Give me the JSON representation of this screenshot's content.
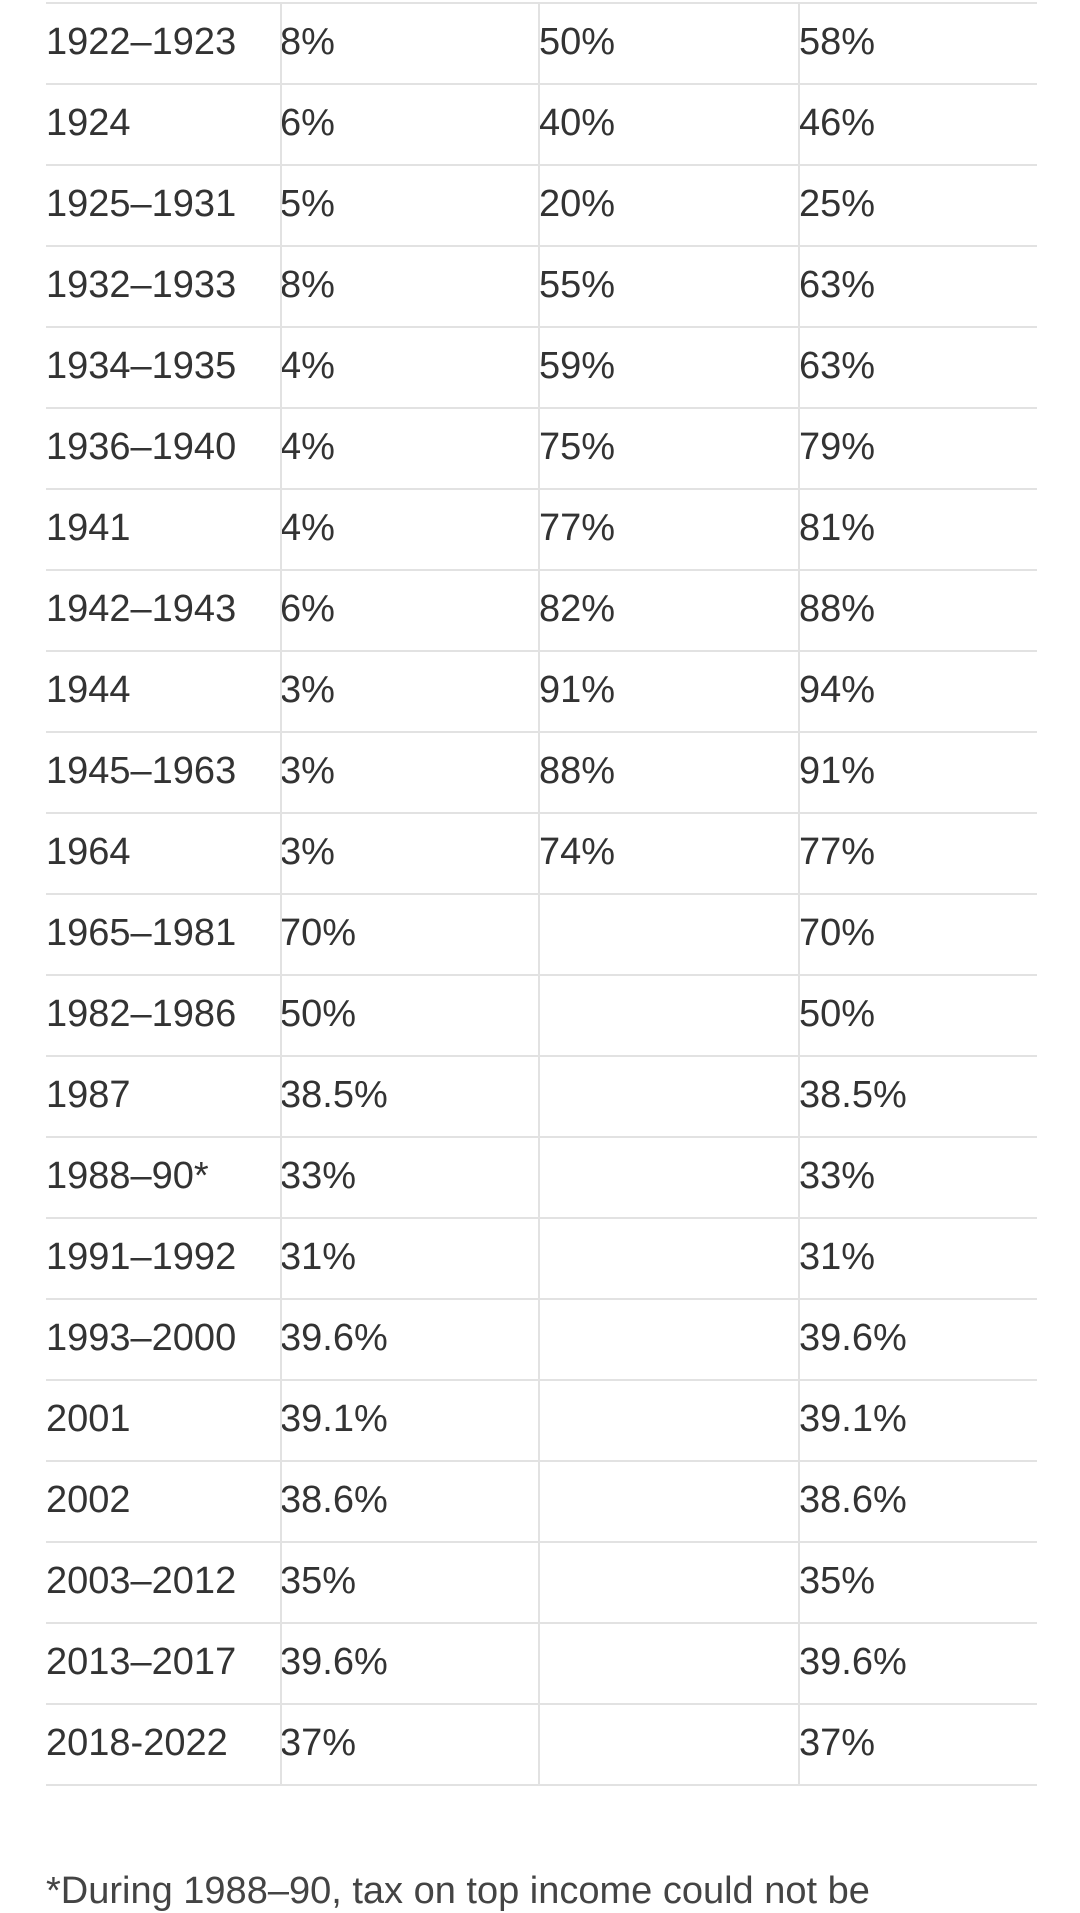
{
  "table": {
    "rows": [
      [
        "1922–1923",
        "8%",
        "50%",
        "58%"
      ],
      [
        "1924",
        "6%",
        "40%",
        "46%"
      ],
      [
        "1925–1931",
        "5%",
        "20%",
        "25%"
      ],
      [
        "1932–1933",
        "8%",
        "55%",
        "63%"
      ],
      [
        "1934–1935",
        "4%",
        "59%",
        "63%"
      ],
      [
        "1936–1940",
        "4%",
        "75%",
        "79%"
      ],
      [
        "1941",
        "4%",
        "77%",
        "81%"
      ],
      [
        "1942–1943",
        "6%",
        "82%",
        "88%"
      ],
      [
        "1944",
        "3%",
        "91%",
        "94%"
      ],
      [
        "1945–1963",
        "3%",
        "88%",
        "91%"
      ],
      [
        "1964",
        "3%",
        "74%",
        "77%"
      ],
      [
        "1965–1981",
        "70%",
        null,
        "70%"
      ],
      [
        "1982–1986",
        "50%",
        null,
        "50%"
      ],
      [
        "1987",
        "38.5%",
        null,
        "38.5%"
      ],
      [
        "1988–90*",
        "33%",
        null,
        "33%"
      ],
      [
        "1991–1992",
        "31%",
        null,
        "31%"
      ],
      [
        "1993–2000",
        "39.6%",
        null,
        "39.6%"
      ],
      [
        "2001",
        "39.1%",
        null,
        "39.1%"
      ],
      [
        "2002",
        "38.6%",
        null,
        "38.6%"
      ],
      [
        "2003–2012",
        "35%",
        null,
        "35%"
      ],
      [
        "2013–2017",
        "39.6%",
        null,
        "39.6%"
      ],
      [
        "2018-2022",
        "37%",
        null,
        "37%"
      ]
    ]
  },
  "footnote": "*During 1988–90, tax on top income could not be"
}
